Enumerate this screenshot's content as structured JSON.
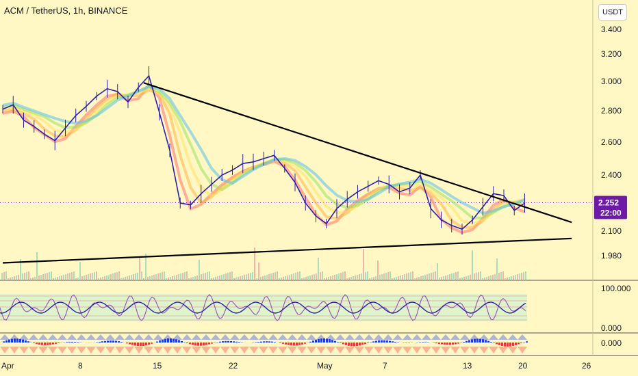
{
  "header": {
    "title": "ACM / TetherUS, 1h, BINANCE",
    "currency_button": "USDT"
  },
  "colors": {
    "background": "#fff8c4",
    "candles": "#2b1fa8",
    "trendline": "#000000",
    "price_tag": "#6e1aa8",
    "ribbon": [
      "#ff6f6f",
      "#ffb347",
      "#ffe066",
      "#9be15d",
      "#5bc0eb"
    ]
  },
  "chart_data": [
    {
      "type": "line",
      "name": "price",
      "y_tick_labels": [
        "3.400",
        "3.200",
        "3.000",
        "2.800",
        "2.600",
        "2.400",
        "2.100",
        "1.980"
      ],
      "x_tick_labels": [
        "Apr",
        "8",
        "15",
        "22",
        "May",
        "7",
        "13",
        "20",
        "26"
      ],
      "last_price": "2.252",
      "countdown": "22:00",
      "series": [
        {
          "values": [
            [
              0,
              2.81
            ],
            [
              1,
              2.84
            ],
            [
              2,
              2.74
            ],
            [
              3,
              2.7
            ],
            [
              4,
              2.65
            ],
            [
              5,
              2.61
            ],
            [
              6,
              2.69
            ],
            [
              7,
              2.77
            ],
            [
              8,
              2.83
            ],
            [
              9,
              2.9
            ],
            [
              10,
              2.95
            ],
            [
              11,
              2.93
            ],
            [
              12,
              2.86
            ],
            [
              13,
              2.96
            ],
            [
              14,
              3.04
            ],
            [
              15,
              2.79
            ],
            [
              16,
              2.55
            ],
            [
              17,
              2.25
            ],
            [
              18,
              2.24
            ],
            [
              19,
              2.3
            ],
            [
              20,
              2.35
            ],
            [
              21,
              2.4
            ],
            [
              22,
              2.43
            ],
            [
              23,
              2.47
            ],
            [
              24,
              2.48
            ],
            [
              25,
              2.5
            ],
            [
              26,
              2.52
            ],
            [
              27,
              2.44
            ],
            [
              28,
              2.36
            ],
            [
              29,
              2.25
            ],
            [
              30,
              2.18
            ],
            [
              31,
              2.14
            ],
            [
              32,
              2.22
            ],
            [
              33,
              2.27
            ],
            [
              34,
              2.31
            ],
            [
              35,
              2.34
            ],
            [
              36,
              2.37
            ],
            [
              37,
              2.35
            ],
            [
              38,
              2.31
            ],
            [
              39,
              2.33
            ],
            [
              40,
              2.4
            ],
            [
              41,
              2.22
            ],
            [
              42,
              2.16
            ],
            [
              43,
              2.13
            ],
            [
              44,
              2.11
            ],
            [
              45,
              2.16
            ],
            [
              46,
              2.23
            ],
            [
              47,
              2.3
            ],
            [
              48,
              2.29
            ],
            [
              49,
              2.21
            ],
            [
              50,
              2.25
            ]
          ]
        }
      ],
      "trendlines": [
        {
          "from": [
            13.5,
            2.99
          ],
          "to": [
            54.5,
            2.147
          ]
        },
        {
          "from": [
            0,
            1.945
          ],
          "to": [
            54.5,
            2.064
          ]
        }
      ]
    },
    {
      "type": "line",
      "name": "oscillator",
      "y_tick_labels": [
        "100.000",
        "0.000"
      ]
    },
    {
      "type": "area",
      "name": "momentum",
      "y_tick_labels": [
        "0.000"
      ]
    }
  ]
}
